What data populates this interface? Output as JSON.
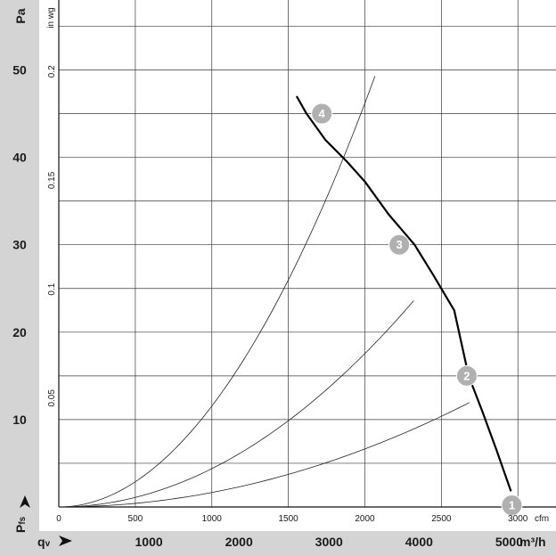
{
  "chart_data": {
    "type": "line",
    "axes": {
      "pressure_pa": {
        "label": "Pa",
        "ticks": [
          10,
          20,
          30,
          40,
          50
        ],
        "range": [
          0,
          58
        ]
      },
      "pressure_inwg": {
        "label": "in wg",
        "ticks": [
          "0.05",
          "0.1",
          "0.15",
          "0.2"
        ]
      },
      "flow_cfm": {
        "label": "cfm",
        "ticks": [
          "0",
          "500",
          "1000",
          "1500",
          "2000",
          "2500",
          "3000"
        ]
      },
      "flow_m3h": {
        "label": "m³/h",
        "ticks": [
          "1000",
          "2000",
          "3000",
          "4000",
          "5000"
        ],
        "range": [
          0,
          5520
        ]
      },
      "pfs_label": "P",
      "pfs_sub": "fs",
      "qv_label": "q",
      "qv_sub": "v"
    },
    "grid": true,
    "series": [
      {
        "role": "fan-curve",
        "x": [
          2640,
          2750,
          2960,
          3200,
          3400,
          3660,
          3950,
          4160,
          4390,
          4550,
          4700,
          4860,
          5020
        ],
        "y": [
          47,
          45,
          42,
          39.5,
          37.2,
          33.5,
          30,
          26.5,
          22.5,
          15,
          11,
          6.5,
          1.8
        ]
      },
      {
        "role": "system-curve",
        "k": 5.75e-07,
        "x_end": 4560
      },
      {
        "role": "system-curve",
        "k": 1.52e-06,
        "x_end": 3940
      },
      {
        "role": "system-curve",
        "k": 4e-06,
        "x_end": 3510
      }
    ],
    "operating_points": [
      {
        "label": "1",
        "x": 5030,
        "y": 0.2
      },
      {
        "label": "2",
        "x": 4530,
        "y": 15
      },
      {
        "label": "3",
        "x": 3780,
        "y": 30
      },
      {
        "label": "4",
        "x": 2920,
        "y": 45
      }
    ]
  }
}
